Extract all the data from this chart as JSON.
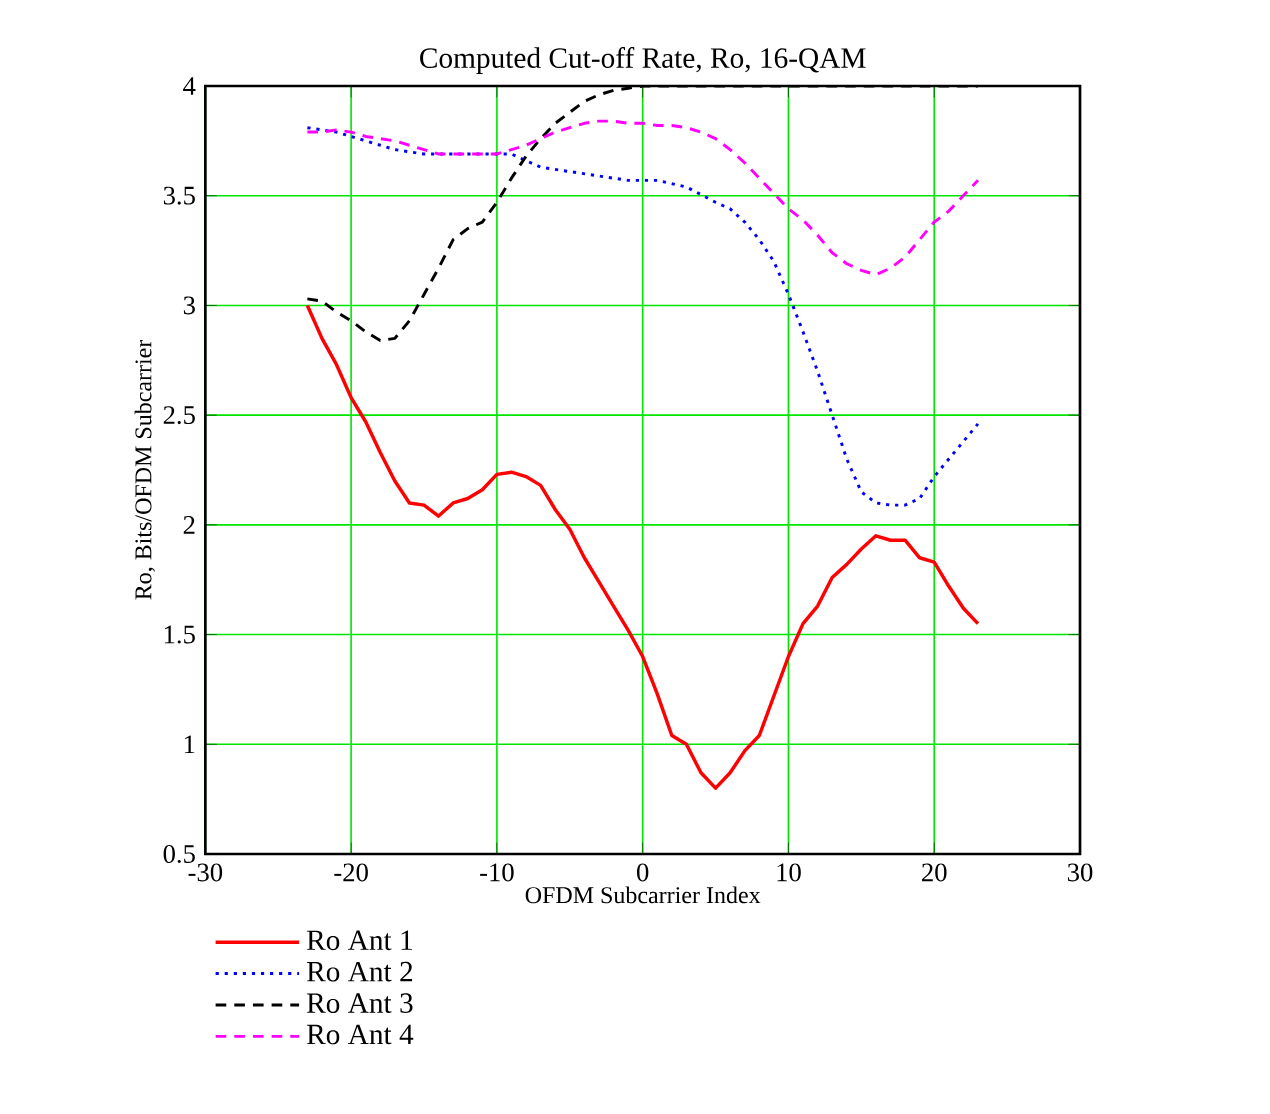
{
  "chart_data": {
    "type": "line",
    "title": "Computed Cut-off Rate, Ro, 16-QAM",
    "xlabel": "OFDM Subcarrier Index",
    "ylabel": "Ro, Bits/OFDM Subcarrier",
    "xlim": [
      -30,
      30
    ],
    "ylim": [
      0.5,
      4
    ],
    "xticks": [
      -30,
      -20,
      -10,
      0,
      10,
      20,
      30
    ],
    "yticks": [
      0.5,
      1,
      1.5,
      2,
      2.5,
      3,
      3.5,
      4
    ],
    "grid": true,
    "legend": "bottom left",
    "marker": "none",
    "series": [
      {
        "name": "Ro Ant 1",
        "color": "#ff0000",
        "line_style": "solid",
        "x": [
          -23,
          -22,
          -21,
          -20,
          -19,
          -18,
          -17,
          -16,
          -15,
          -14,
          -13,
          -12,
          -11,
          -10,
          -9,
          -8,
          -7,
          -6,
          -5,
          -4,
          -3,
          -2,
          -1,
          0,
          1,
          2,
          3,
          4,
          5,
          6,
          7,
          8,
          9,
          10,
          11,
          12,
          13,
          14,
          15,
          16,
          17,
          18,
          19,
          20,
          21,
          22,
          23
        ],
        "values": [
          3.0,
          2.85,
          2.73,
          2.58,
          2.47,
          2.33,
          2.2,
          2.1,
          2.09,
          2.04,
          2.1,
          2.12,
          2.16,
          2.23,
          2.24,
          2.22,
          2.18,
          2.07,
          1.98,
          1.85,
          1.74,
          1.63,
          1.52,
          1.4,
          1.23,
          1.04,
          1.0,
          0.87,
          0.8,
          0.87,
          0.97,
          1.04,
          1.22,
          1.4,
          1.55,
          1.63,
          1.76,
          1.82,
          1.89,
          1.95,
          1.93,
          1.93,
          1.85,
          1.83,
          1.72,
          1.62,
          1.55
        ]
      },
      {
        "name": "Ro Ant 2",
        "color": "#0000ff",
        "line_style": "dotted",
        "x": [
          -23,
          -21,
          -19,
          -17,
          -15,
          -13,
          -11,
          -9,
          -7,
          -5,
          -3,
          -1,
          1,
          3,
          5,
          6,
          7,
          8,
          9,
          10,
          11,
          12,
          13,
          14,
          15,
          16,
          17,
          18,
          19,
          20,
          21,
          22,
          23
        ],
        "values": [
          3.81,
          3.79,
          3.75,
          3.71,
          3.69,
          3.69,
          3.69,
          3.69,
          3.63,
          3.61,
          3.59,
          3.57,
          3.57,
          3.54,
          3.47,
          3.44,
          3.38,
          3.3,
          3.2,
          3.05,
          2.88,
          2.7,
          2.5,
          2.3,
          2.15,
          2.1,
          2.09,
          2.09,
          2.12,
          2.22,
          2.3,
          2.38,
          2.46
        ]
      },
      {
        "name": "Ro Ant 3",
        "color": "#000000",
        "line_style": "dashed",
        "x": [
          -23,
          -22,
          -21,
          -20,
          -19,
          -18,
          -17,
          -16,
          -15,
          -14,
          -13,
          -12,
          -11,
          -10,
          -9,
          -8,
          -7,
          -6,
          -5,
          -4,
          -3,
          -2,
          -1,
          0,
          5,
          10,
          15,
          20,
          23
        ],
        "values": [
          3.03,
          3.02,
          2.97,
          2.93,
          2.88,
          2.84,
          2.85,
          2.93,
          3.05,
          3.17,
          3.3,
          3.35,
          3.38,
          3.47,
          3.58,
          3.68,
          3.76,
          3.83,
          3.88,
          3.93,
          3.96,
          3.98,
          3.99,
          4.0,
          4.0,
          4.0,
          4.0,
          4.0,
          4.0
        ]
      },
      {
        "name": "Ro Ant 4",
        "color": "#ff00ff",
        "line_style": "dashed",
        "x": [
          -23,
          -22,
          -21,
          -20,
          -19,
          -18,
          -17,
          -16,
          -15,
          -14,
          -13,
          -12,
          -11,
          -10,
          -9,
          -8,
          -7,
          -6,
          -5,
          -4,
          -3,
          -2,
          -1,
          0,
          1,
          2,
          3,
          4,
          5,
          6,
          7,
          8,
          9,
          10,
          11,
          12,
          13,
          14,
          15,
          16,
          17,
          18,
          19,
          20,
          21,
          22,
          23
        ],
        "values": [
          3.79,
          3.79,
          3.8,
          3.79,
          3.77,
          3.76,
          3.75,
          3.73,
          3.71,
          3.69,
          3.69,
          3.69,
          3.69,
          3.69,
          3.71,
          3.73,
          3.76,
          3.79,
          3.81,
          3.83,
          3.84,
          3.84,
          3.83,
          3.83,
          3.82,
          3.82,
          3.81,
          3.79,
          3.76,
          3.71,
          3.65,
          3.58,
          3.51,
          3.44,
          3.39,
          3.32,
          3.24,
          3.19,
          3.16,
          3.14,
          3.17,
          3.22,
          3.3,
          3.38,
          3.43,
          3.5,
          3.57
        ]
      }
    ]
  }
}
